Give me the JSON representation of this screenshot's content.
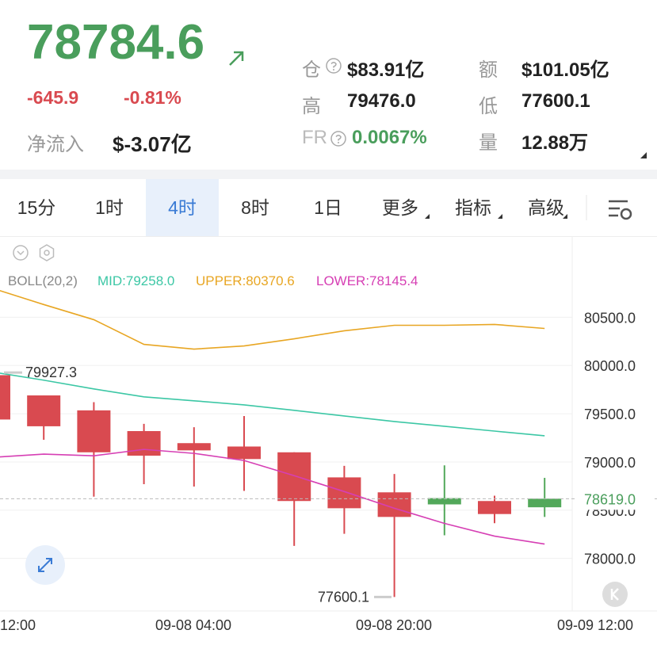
{
  "header": {
    "price": "78784.6",
    "change": "-645.9",
    "change_pct": "-0.81%",
    "net_inflow_label": "净流入",
    "net_inflow": "$-3.07亿",
    "stats": [
      {
        "label": "仓",
        "value": "$83.91亿"
      },
      {
        "label": "额",
        "value": "$101.05亿"
      },
      {
        "label": "高",
        "value": "79476.0"
      },
      {
        "label": "低",
        "value": "77600.1"
      },
      {
        "label": "FR",
        "value": "0.0067%"
      },
      {
        "label": "量",
        "value": "12.88万"
      }
    ]
  },
  "tabs": [
    "15分",
    "1时",
    "4时",
    "8时",
    "1日",
    "更多",
    "指标",
    "高级"
  ],
  "chart": {
    "type": "candlestick",
    "indicator": "BOLL(20,2)",
    "mid_label": "MID:79258.0",
    "upper_label": "UPPER:80370.6",
    "lower_label": "LOWER:78145.4",
    "ylim": [
      77455,
      81333
    ],
    "yticks": [
      {
        "value": 80500,
        "label": "80500.0"
      },
      {
        "value": 80000,
        "label": "80000.0"
      },
      {
        "value": 79500,
        "label": "79500.0"
      },
      {
        "value": 79000,
        "label": "79000.0"
      },
      {
        "value": 78500,
        "label": "78500.0"
      },
      {
        "value": 78000,
        "label": "78000.0"
      }
    ],
    "candles": {
      "open": [
        79900,
        79690,
        79535,
        79320,
        79195,
        79160,
        79100,
        78840,
        78685,
        78560,
        78595,
        78530
      ],
      "high": [
        79927.3,
        79690,
        79620,
        79395,
        79360,
        79476,
        79100,
        78960,
        78875,
        78965,
        78650,
        78835
      ],
      "low": [
        79420,
        79230,
        78640,
        78770,
        78745,
        78700,
        78130,
        78255,
        77600.1,
        78240,
        78365,
        78430
      ],
      "close": [
        79440,
        79370,
        79100,
        79065,
        79120,
        79030,
        78595,
        78520,
        78430,
        78625,
        78460,
        78619
      ]
    },
    "series": [
      {
        "name": "UPPER",
        "color": "#e8a623",
        "values": [
          80797,
          80632,
          80475,
          80219,
          80170,
          80203,
          80277,
          80360,
          80417,
          80417,
          80426,
          80384
        ]
      },
      {
        "name": "MID",
        "color": "#3cc7a5",
        "values": [
          79931,
          79848,
          79757,
          79675,
          79634,
          79592,
          79535,
          79477,
          79419,
          79370,
          79320,
          79271
        ]
      },
      {
        "name": "LOWER",
        "color": "#d63fb4",
        "values": [
          79048,
          79081,
          79064,
          79130,
          79089,
          79015,
          78858,
          78693,
          78520,
          78363,
          78231,
          78149
        ]
      }
    ],
    "last_price": 78619,
    "last_price_label": "78619.0",
    "x_labels": [
      "12:00",
      "09-08 04:00",
      "09-08 20:00",
      "09-09 12:00"
    ]
  }
}
